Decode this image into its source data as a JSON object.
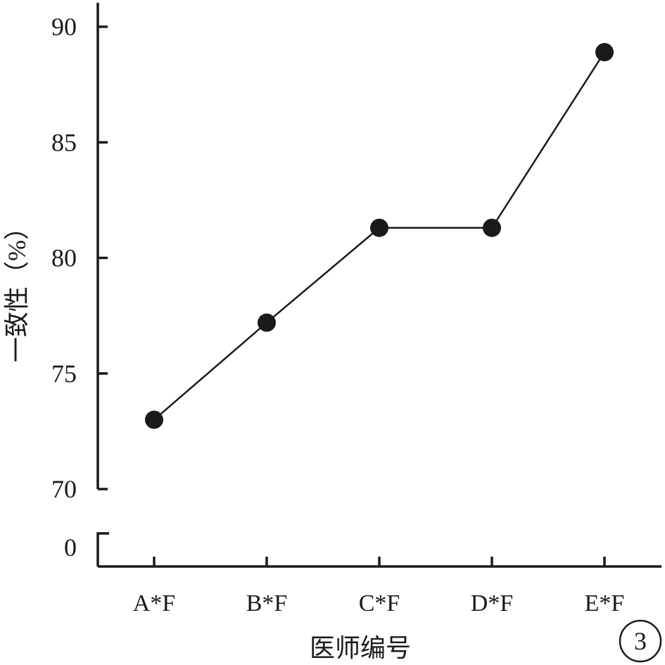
{
  "chart_data": {
    "type": "line",
    "categories": [
      "A*F",
      "B*F",
      "C*F",
      "D*F",
      "E*F"
    ],
    "series": [
      {
        "values": [
          73,
          77.2,
          81.3,
          81.3,
          88.9
        ]
      }
    ],
    "xlabel": "医师编号",
    "ylabel": "一致性（%）",
    "ylim": [
      70,
      90
    ],
    "yticks": [
      90,
      85,
      80,
      75,
      70
    ],
    "axis_break": true,
    "break_tick": "0",
    "panel_label": "3",
    "grid": false,
    "colors": {
      "line": "#1a1a1a",
      "marker": "#1a1a1a"
    }
  }
}
